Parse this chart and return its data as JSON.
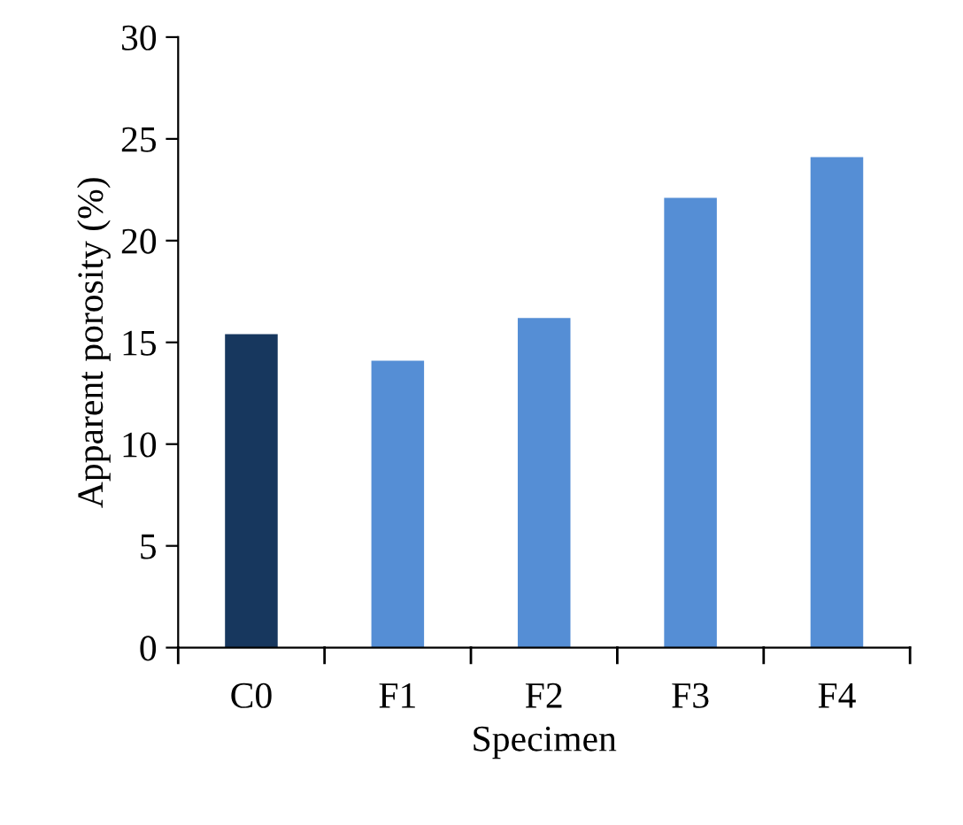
{
  "chart_data": {
    "type": "bar",
    "xlabel": "Specimen",
    "ylabel": "Apparent porosity (%)",
    "categories": [
      "C0",
      "F1",
      "F2",
      "F3",
      "F4"
    ],
    "values": [
      15.4,
      14.1,
      16.2,
      22.1,
      24.1
    ],
    "colors": [
      "#17375e",
      "#558ed5",
      "#558ed5",
      "#558ed5",
      "#558ed5"
    ],
    "ylim": [
      0,
      30
    ],
    "yticks": [
      0,
      5,
      10,
      15,
      20,
      25,
      30
    ],
    "grid": false,
    "legend": false
  }
}
